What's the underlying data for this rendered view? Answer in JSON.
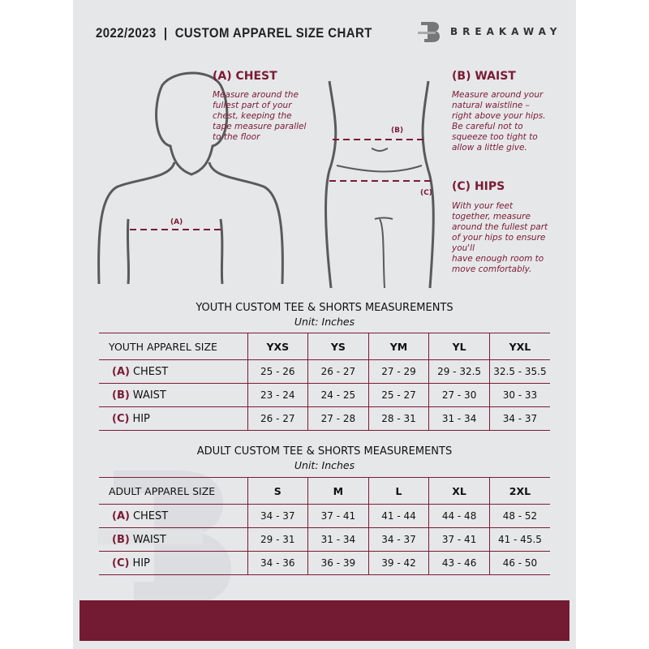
{
  "header": {
    "title": "2022/2023  |  CUSTOM APPAREL SIZE CHART",
    "brand": "BREAKAWAY",
    "logo_letter": "B"
  },
  "chest": {
    "heading": "(A) CHEST",
    "marker": "(A)",
    "lines": [
      "Measure around the",
      "fullest part of your",
      "chest, keeping the",
      "tape measure parallel",
      "to the floor"
    ]
  },
  "waist": {
    "heading": "(B) WAIST",
    "marker": "(B)",
    "lines": [
      "Measure around your",
      "natural waistline –",
      "right above your hips.",
      "Be careful not to",
      "squeeze too tight to",
      "allow a little give."
    ]
  },
  "hips": {
    "heading": "(C) HIPS",
    "marker": "(C)",
    "lines": [
      "With your feet",
      "together, measure",
      "around the fullest part",
      "of your hips to ensure",
      "you'll",
      "have enough room to",
      "move comfortably."
    ]
  },
  "colors": {
    "accent": "#7a1b33",
    "background": "#e6e7e9"
  },
  "youth": {
    "title": "YOUTH CUSTOM TEE & SHORTS MEASUREMENTS",
    "unit": "Unit: Inches",
    "size_label": "YOUTH APPAREL SIZE",
    "sizes": [
      "YXS",
      "YS",
      "YM",
      "YL",
      "YXL"
    ],
    "rows": [
      {
        "code": "(A)",
        "name": "CHEST",
        "values": [
          "25 - 26",
          "26 - 27",
          "27 - 29",
          "29 - 32.5",
          "32.5 - 35.5"
        ]
      },
      {
        "code": "(B)",
        "name": "WAIST",
        "values": [
          "23 - 24",
          "24 - 25",
          "25 - 27",
          "27 - 30",
          "30 - 33"
        ]
      },
      {
        "code": "(C)",
        "name": "HIP",
        "values": [
          "26 - 27",
          "27 - 28",
          "28 - 31",
          "31 - 34",
          "34 - 37"
        ]
      }
    ]
  },
  "adult": {
    "title": "ADULT CUSTOM TEE & SHORTS MEASUREMENTS",
    "unit": "Unit: Inches",
    "size_label": "ADULT APPAREL SIZE",
    "sizes": [
      "S",
      "M",
      "L",
      "XL",
      "2XL"
    ],
    "rows": [
      {
        "code": "(A)",
        "name": "CHEST",
        "values": [
          "34 - 37",
          "37 - 41",
          "41 - 44",
          "44 - 48",
          "48 - 52"
        ]
      },
      {
        "code": "(B)",
        "name": "WAIST",
        "values": [
          "29 - 31",
          "31 - 34",
          "34 - 37",
          "37 - 41",
          "41 - 45.5"
        ]
      },
      {
        "code": "(C)",
        "name": "HIP",
        "values": [
          "34 - 36",
          "36 - 39",
          "39 - 42",
          "43 - 46",
          "46 - 50"
        ]
      }
    ]
  }
}
